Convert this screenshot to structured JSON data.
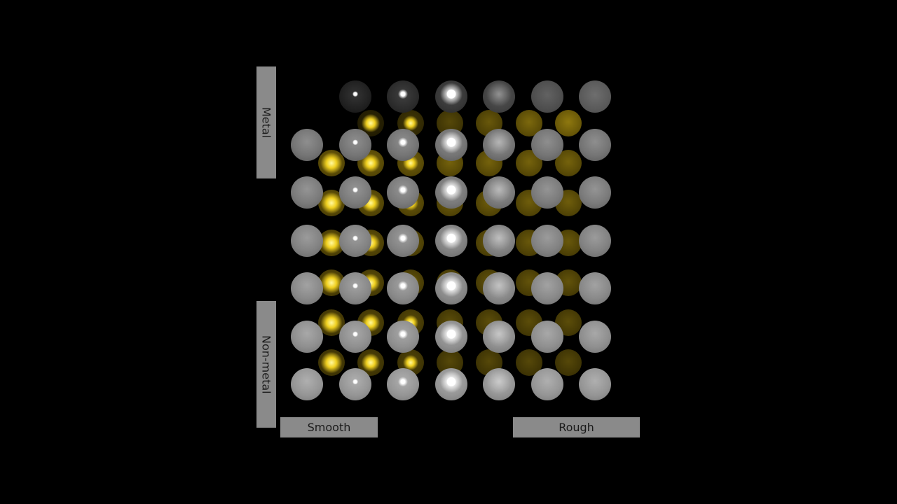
{
  "labels": {
    "metal": "Metal",
    "non_metal": "Non-metal",
    "smooth": "Smooth",
    "rough": "Rough"
  },
  "colors": {
    "background": "#000000",
    "panel": "#8a8a8a",
    "panel_text": "#1a1a1a",
    "grey_sphere": "#8c8c8c",
    "gold_sphere": "#b59a10",
    "highlight": "#ffffff"
  },
  "grid": {
    "grey_rows": 7,
    "grey_cols": 7,
    "gold_rows": 7,
    "gold_cols": 7
  }
}
